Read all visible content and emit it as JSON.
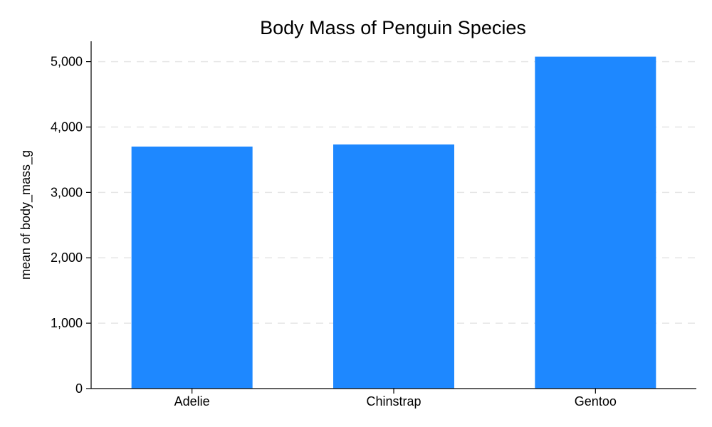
{
  "chart_data": {
    "type": "bar",
    "title": "Body Mass of Penguin Species",
    "xlabel": "",
    "ylabel": "mean of body_mass_g",
    "categories": [
      "Adelie",
      "Chinstrap",
      "Gentoo"
    ],
    "values": [
      3701,
      3733,
      5076
    ],
    "ylim": [
      0,
      5200
    ],
    "yticks": [
      0,
      1000,
      2000,
      3000,
      4000,
      5000
    ],
    "ytick_labels": [
      "0",
      "1,000",
      "2,000",
      "3,000",
      "4,000",
      "5,000"
    ],
    "grid": true,
    "legend": "none",
    "colors": {
      "bar": "#1e88ff",
      "grid": "#e6e6e6",
      "axis": "#000000"
    }
  }
}
